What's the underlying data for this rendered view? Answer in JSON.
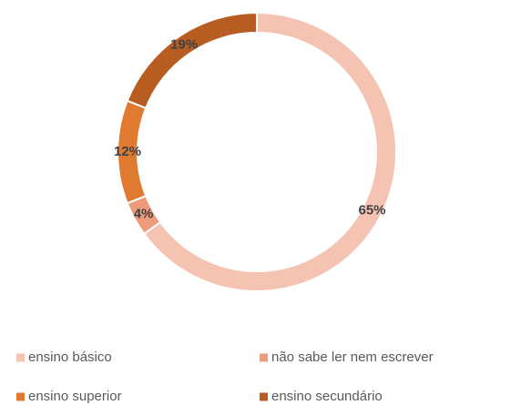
{
  "chart_data": {
    "type": "donut",
    "categories": [
      "ensino básico",
      "não sabe ler nem escrever",
      "ensino superior",
      "ensino secundário"
    ],
    "values": [
      65,
      4,
      12,
      19
    ],
    "value_labels": [
      "65%",
      "4%",
      "12%",
      "19%"
    ],
    "colors": [
      "#f5c3b1",
      "#ee9b7b",
      "#e07a30",
      "#b85d22"
    ],
    "legend": "bottom"
  }
}
